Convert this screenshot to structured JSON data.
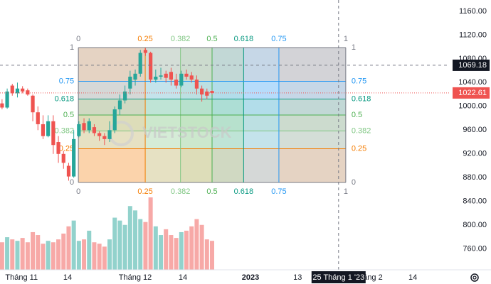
{
  "chart_data": {
    "type": "candlestick",
    "ylim": [
      725,
      1179
    ],
    "yticks": [
      {
        "value": 760,
        "label": "760.00"
      },
      {
        "value": 800,
        "label": "800.00"
      },
      {
        "value": 840,
        "label": "840.00"
      },
      {
        "value": 880,
        "label": "880.00"
      },
      {
        "value": 920,
        "label": "920.00"
      },
      {
        "value": 960,
        "label": "960.00"
      },
      {
        "value": 1000,
        "label": "1000.00"
      },
      {
        "value": 1040,
        "label": "1040.00"
      },
      {
        "value": 1080,
        "label": "1080.00"
      },
      {
        "value": 1120,
        "label": "1120.00"
      },
      {
        "value": 1160,
        "label": "1160.00"
      }
    ],
    "xlim": [
      -0.4,
      87.4
    ],
    "xticks": [
      {
        "value": 3.8,
        "label": "Tháng 11"
      },
      {
        "value": 12.8,
        "label": "14"
      },
      {
        "value": 26,
        "label": "Tháng 12"
      },
      {
        "value": 35.3,
        "label": "14"
      },
      {
        "value": 48.5,
        "label": "2023"
      },
      {
        "value": 57.7,
        "label": "13"
      },
      {
        "value": 71.5,
        "label": "Tháng 2"
      },
      {
        "value": 80.2,
        "label": "14"
      }
    ],
    "open": [
      1005,
      998,
      1035,
      1022,
      1030,
      1027,
      1018,
      990,
      970,
      950,
      975,
      940,
      920,
      900,
      882,
      950,
      972,
      960,
      965,
      955,
      950,
      945,
      960,
      995,
      1010,
      1030,
      1045,
      1055,
      1095,
      1090,
      1045,
      1050,
      1055,
      1058,
      1045,
      1035,
      1055,
      1052,
      1045,
      1030,
      1025,
      1026
    ],
    "high": [
      1012,
      1030,
      1038,
      1040,
      1034,
      1030,
      1020,
      1000,
      985,
      985,
      985,
      950,
      925,
      905,
      960,
      975,
      980,
      980,
      970,
      958,
      955,
      975,
      1000,
      1020,
      1035,
      1060,
      1062,
      1095,
      1098,
      1092,
      1062,
      1065,
      1060,
      1065,
      1055,
      1060,
      1062,
      1058,
      1052,
      1035,
      1030,
      1027
    ],
    "low": [
      995,
      996,
      1018,
      1015,
      1022,
      1018,
      975,
      960,
      945,
      948,
      920,
      905,
      895,
      875,
      880,
      948,
      955,
      955,
      950,
      942,
      935,
      940,
      955,
      985,
      1005,
      1020,
      1035,
      1050,
      1085,
      1040,
      1040,
      1045,
      1040,
      1035,
      1030,
      1032,
      1045,
      1040,
      1020,
      1008,
      1012,
      1020
    ],
    "close": [
      998,
      1025,
      1022,
      1030,
      1025,
      1020,
      990,
      970,
      950,
      975,
      935,
      920,
      905,
      882,
      945,
      970,
      960,
      975,
      955,
      950,
      945,
      960,
      995,
      1010,
      1025,
      1050,
      1055,
      1090,
      1090,
      1045,
      1050,
      1052,
      1048,
      1045,
      1035,
      1055,
      1050,
      1045,
      1030,
      1020,
      1018,
      1022.61
    ],
    "volume": [
      38,
      45,
      42,
      40,
      44,
      38,
      52,
      48,
      36,
      40,
      38,
      42,
      50,
      60,
      68,
      40,
      42,
      54,
      38,
      36,
      32,
      42,
      72,
      68,
      62,
      88,
      82,
      70,
      66,
      100,
      60,
      48,
      56,
      48,
      44,
      52,
      54,
      60,
      70,
      62,
      42,
      40
    ],
    "vlim": [
      0,
      100
    ],
    "up_color": "#26a69a",
    "down_color": "#ef5350",
    "fib": {
      "start_x": 14.9,
      "end_x": 67.1,
      "start_price": 872,
      "end_price": 1099,
      "levels": [
        0,
        0.25,
        0.382,
        0.5,
        0.618,
        0.75,
        1
      ],
      "colors": [
        "#787b86",
        "#f57c00",
        "#81c784",
        "#4caf50",
        "#089981",
        "#2196f3",
        "#787b86"
      ]
    },
    "crosshair": {
      "price": 1069.18,
      "price_label": "1069.18",
      "x": 65.7,
      "x_label": "25 Tháng 1 '23"
    },
    "last_price": 1022.61,
    "last_price_label": "1022.61",
    "watermark": "VIETSTOCK"
  }
}
